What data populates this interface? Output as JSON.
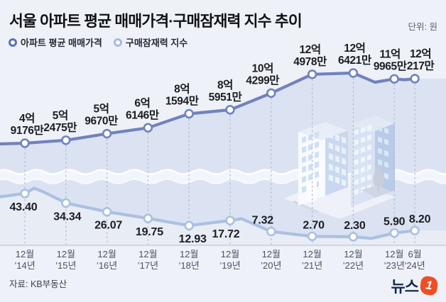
{
  "page": {
    "title": "서울 아파트 평균 매매가격·구매잠재력 지수 추이",
    "unit_label": "단위: 원",
    "source": "자료: KB부동산",
    "logo": {
      "text": "뉴스",
      "badge": "1"
    }
  },
  "legend": {
    "items": [
      {
        "label": "아파트 평균 매매가격",
        "color": "#5b73b2"
      },
      {
        "label": "구매잠재력 지수",
        "color": "#a6badd"
      }
    ]
  },
  "theme": {
    "background": "#eef1f7",
    "price_line": "#7182bd",
    "index_line": "#abc0e1",
    "price_area": "#dbe2f2",
    "index_area": "#e8ecf5",
    "wave_band": "#f2f5fb",
    "dashed_guide": "#b2b9c7",
    "axis_line": "#c7ccd7",
    "label_text": "#1b1d22",
    "tick_text": "#4d535e",
    "logo_navy": "#15294e",
    "logo_orange": "#f04e23"
  },
  "chart_data": {
    "type": "line",
    "title": "서울 아파트 평균 매매가격·구매잠재력 지수 추이",
    "unit": "원",
    "grid": "vertical-dashed",
    "legend_position": "top-left",
    "x_tick_labels": [
      [
        "12월",
        "’14년"
      ],
      [
        "12월",
        "’15년"
      ],
      [
        "12월",
        "’16년"
      ],
      [
        "12월",
        "’17년"
      ],
      [
        "12월",
        "’18년"
      ],
      [
        "12월",
        "’19년"
      ],
      [
        "12월",
        "’20년"
      ],
      [
        "12월",
        "’21년"
      ],
      [
        "12월",
        "’22년"
      ],
      [
        "12월",
        "’23년"
      ],
      [
        "6월",
        "’24년"
      ]
    ],
    "series": [
      {
        "name": "아파트 평균 매매가격",
        "unit": "만원",
        "values": [
          49176,
          52475,
          59670,
          66146,
          81594,
          85951,
          104299,
          124978,
          126421,
          119965,
          120217
        ],
        "point_labels": [
          [
            "4억",
            "9176만"
          ],
          [
            "5억",
            "2475만"
          ],
          [
            "5억",
            "9670만"
          ],
          [
            "6억",
            "6146만"
          ],
          [
            "8억",
            "1594만"
          ],
          [
            "8억",
            "5951만"
          ],
          [
            "10억",
            "4299만"
          ],
          [
            "12억",
            "4978만"
          ],
          [
            "12억",
            "6421만"
          ],
          [
            "11억",
            "9965만"
          ],
          [
            "12억",
            "217만"
          ]
        ],
        "color": "#7182bd"
      },
      {
        "name": "구매잠재력 지수",
        "values": [
          43.4,
          34.34,
          26.07,
          19.75,
          12.93,
          17.72,
          7.32,
          2.7,
          2.3,
          5.9,
          8.2
        ],
        "point_labels": [
          "43.40",
          "34.34",
          "26.07",
          "19.75",
          "12.93",
          "17.72",
          "7.32",
          "2.70",
          "2.30",
          "5.90",
          "8.20"
        ],
        "color": "#abc0e1"
      }
    ]
  }
}
